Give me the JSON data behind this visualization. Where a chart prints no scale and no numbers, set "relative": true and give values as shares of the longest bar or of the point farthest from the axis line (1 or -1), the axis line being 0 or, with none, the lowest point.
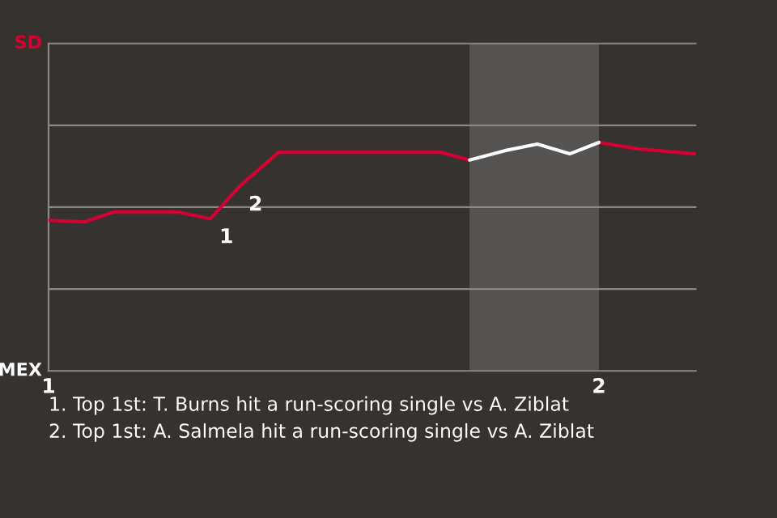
{
  "chart_data": {
    "type": "line",
    "relative": true,
    "x": [
      1.0,
      1.065,
      1.118,
      1.235,
      1.294,
      1.347,
      1.418,
      1.712,
      1.765,
      1.88,
      2.0,
      2.074,
      2.176
    ],
    "series": [
      {
        "color": "#d50032",
        "values": [
          0.659,
          0.652,
          0.695,
          0.695,
          0.666,
          0.808,
          0.957,
          0.957,
          0.923,
          null,
          1,
          0.971,
          0.95
        ]
      },
      {
        "color": "#ffffff",
        "x": [
          1.765,
          1.829,
          1.888,
          1.947,
          2.0
        ],
        "values": [
          0.923,
          0.964,
          0.993,
          0.95,
          1
        ]
      }
    ],
    "xlim": [
      1,
      2.176
    ],
    "xticks": [
      1,
      2
    ],
    "marker": "none",
    "line_style": "solid",
    "ref_lines": [
      {
        "axis": "y",
        "value": 0.358,
        "label": null,
        "color": "#8a8784"
      },
      {
        "axis": "y",
        "value": 0.717,
        "label": null,
        "color": "#8a8784"
      },
      {
        "axis": "y",
        "value": 1.075,
        "label": null,
        "color": "#8a8784"
      },
      {
        "axis": "y",
        "value": 1.433,
        "label": null,
        "color": "#8a8784"
      }
    ],
    "bands": [
      {
        "axis": "x",
        "from": 1.765,
        "to": 2.0,
        "label": null,
        "color": "#555351"
      }
    ],
    "annotations": [
      "SD",
      "MEX",
      {
        "text": "1",
        "x": 1.294,
        "y": 0.666
      },
      {
        "text": "2",
        "x": 1.347,
        "y": 0.808
      },
      "1. Top 1st: T. Burns hit a run-scoring single vs A. Ziblat",
      "2. Top 1st: A. Salmela hit a run-scoring single vs A. Ziblat"
    ]
  }
}
